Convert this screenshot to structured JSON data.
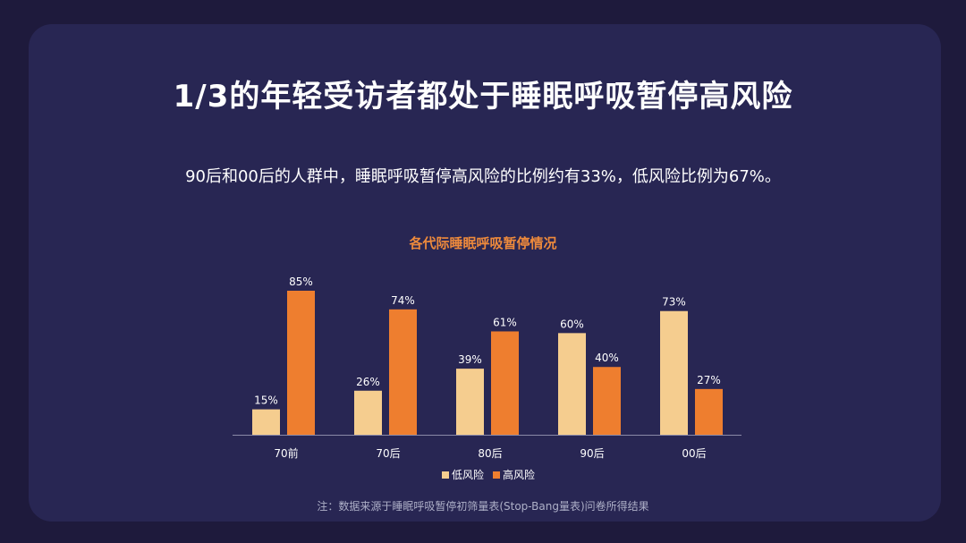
{
  "title": "1/3的年轻受访者都处于睡眠呼吸暂停高风险",
  "subtitle": "90后和00后的人群中，睡眠呼吸暂停高风险的比例约有33%，低风险比例为67%。",
  "note": "注：数据来源于睡眠呼吸暂停初筛量表(Stop-Bang量表)问卷所得结果",
  "colors": {
    "low": "#f5cd8f",
    "high": "#ee7e2f",
    "axis": "#8a89a8",
    "text": "#ffffff"
  },
  "chart_data": {
    "type": "bar",
    "title": "各代际睡眠呼吸暂停情况",
    "categories": [
      "70前",
      "70后",
      "80后",
      "90后",
      "00后"
    ],
    "series": [
      {
        "name": "低风险",
        "values": [
          15,
          26,
          39,
          60,
          73
        ],
        "labels": [
          "15%",
          "26%",
          "39%",
          "60%",
          "73%"
        ]
      },
      {
        "name": "高风险",
        "values": [
          85,
          74,
          61,
          40,
          27
        ],
        "labels": [
          "85%",
          "74%",
          "61%",
          "40%",
          "27%"
        ]
      }
    ],
    "ylim": [
      0,
      100
    ],
    "grid": false,
    "legend": "bottom"
  }
}
